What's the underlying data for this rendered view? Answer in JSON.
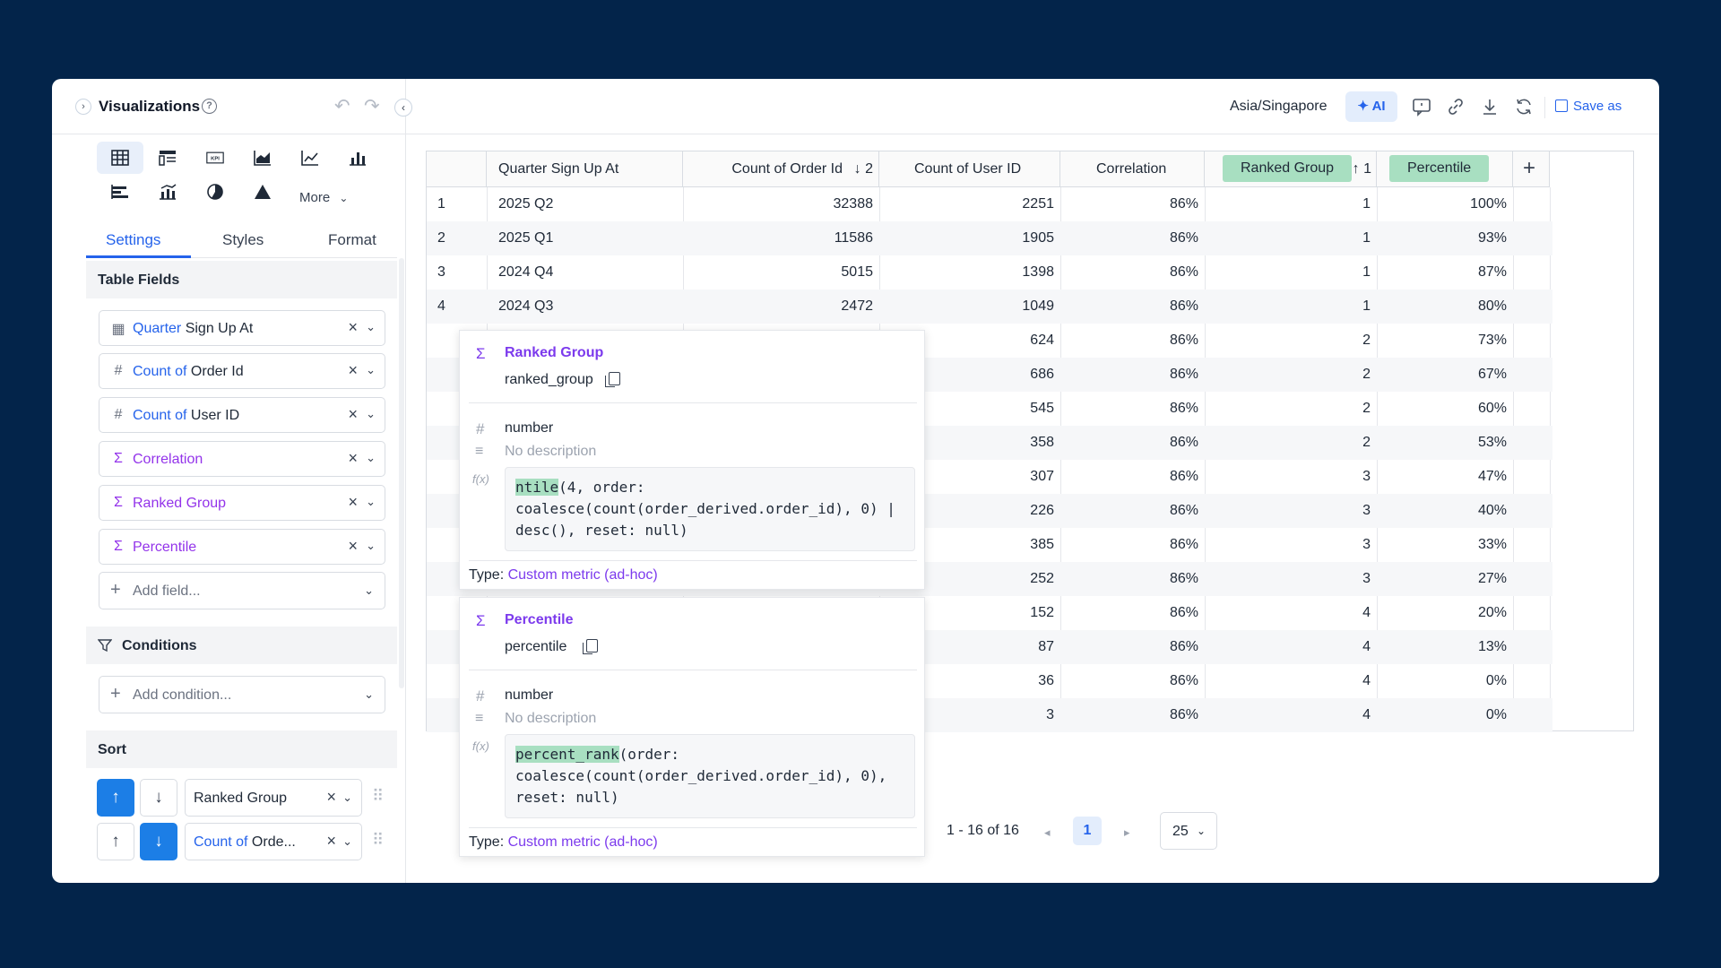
{
  "left_panel": {
    "title": "Visualizations",
    "more_label": "More",
    "tabs": [
      "Settings",
      "Styles",
      "Format"
    ],
    "table_fields_heading": "Table Fields",
    "fields": [
      {
        "prefix": "Quarter",
        "name": " Sign Up At",
        "icon": "calendar-icon"
      },
      {
        "prefix": "Count of",
        "name": " Order Id",
        "icon": "hash-icon"
      },
      {
        "prefix": "Count of",
        "name": " User ID",
        "icon": "hash-icon"
      },
      {
        "prefix": "",
        "name": "Correlation",
        "icon": "sigma-icon"
      },
      {
        "prefix": "",
        "name": "Ranked Group",
        "icon": "sigma-icon"
      },
      {
        "prefix": "",
        "name": "Percentile",
        "icon": "sigma-icon"
      }
    ],
    "add_field_placeholder": "Add field...",
    "conditions_heading": "Conditions",
    "add_condition_placeholder": "Add condition...",
    "sort_heading": "Sort",
    "sorts": [
      {
        "prefix": "",
        "name": "Ranked Group",
        "direction": "asc"
      },
      {
        "prefix": "Count of",
        "name": " Orde...",
        "direction": "desc"
      }
    ]
  },
  "topbar": {
    "timezone": "Asia/Singapore",
    "ai_label": "AI",
    "save_as_label": "Save as"
  },
  "table": {
    "headers": {
      "quarter": "Quarter Sign Up At",
      "order_count": "Count of Order Id",
      "order_sort": "↓ 2",
      "user_count": "Count of User ID",
      "correlation": "Correlation",
      "ranked_group": "Ranked Group",
      "ranked_sort": "↑ 1",
      "percentile": "Percentile"
    },
    "rows": [
      {
        "n": "1",
        "quarter": "2025 Q2",
        "orders": "32388",
        "users": "2251",
        "corr": "86%",
        "group": "1",
        "pct": "100%"
      },
      {
        "n": "2",
        "quarter": "2025 Q1",
        "orders": "11586",
        "users": "1905",
        "corr": "86%",
        "group": "1",
        "pct": "93%"
      },
      {
        "n": "3",
        "quarter": "2024 Q4",
        "orders": "5015",
        "users": "1398",
        "corr": "86%",
        "group": "1",
        "pct": "87%"
      },
      {
        "n": "4",
        "quarter": "2024 Q3",
        "orders": "2472",
        "users": "1049",
        "corr": "86%",
        "group": "1",
        "pct": "80%"
      },
      {
        "n": "",
        "quarter": "",
        "orders": "",
        "users": "624",
        "corr": "86%",
        "group": "2",
        "pct": "73%"
      },
      {
        "n": "",
        "quarter": "",
        "orders": "",
        "users": "686",
        "corr": "86%",
        "group": "2",
        "pct": "67%"
      },
      {
        "n": "",
        "quarter": "",
        "orders": "",
        "users": "545",
        "corr": "86%",
        "group": "2",
        "pct": "60%"
      },
      {
        "n": "",
        "quarter": "",
        "orders": "",
        "users": "358",
        "corr": "86%",
        "group": "2",
        "pct": "53%"
      },
      {
        "n": "",
        "quarter": "",
        "orders": "",
        "users": "307",
        "corr": "86%",
        "group": "3",
        "pct": "47%"
      },
      {
        "n": "",
        "quarter": "",
        "orders": "",
        "users": "226",
        "corr": "86%",
        "group": "3",
        "pct": "40%"
      },
      {
        "n": "",
        "quarter": "",
        "orders": "",
        "users": "385",
        "corr": "86%",
        "group": "3",
        "pct": "33%"
      },
      {
        "n": "",
        "quarter": "",
        "orders": "",
        "users": "252",
        "corr": "86%",
        "group": "3",
        "pct": "27%"
      },
      {
        "n": "",
        "quarter": "",
        "orders": "",
        "users": "152",
        "corr": "86%",
        "group": "4",
        "pct": "20%"
      },
      {
        "n": "",
        "quarter": "",
        "orders": "",
        "users": "87",
        "corr": "86%",
        "group": "4",
        "pct": "13%"
      },
      {
        "n": "",
        "quarter": "",
        "orders": "",
        "users": "36",
        "corr": "86%",
        "group": "4",
        "pct": "0%"
      },
      {
        "n": "",
        "quarter": "",
        "orders": "",
        "users": "3",
        "corr": "86%",
        "group": "4",
        "pct": "0%"
      }
    ]
  },
  "popovers": [
    {
      "name": "Ranked Group",
      "key": "ranked_group",
      "type": "number",
      "description": "No description",
      "fx_label": "f(x)",
      "code_highlight": "ntile",
      "code_rest": "(4, order:\ncoalesce(count(order_derived.order_id), 0) |\ndesc(), reset: null)",
      "type_prefix": "Type: ",
      "type_value": "Custom metric (ad-hoc)"
    },
    {
      "name": "Percentile",
      "key": "percentile",
      "type": "number",
      "description": "No description",
      "fx_label": "f(x)",
      "code_highlight": "percent_rank",
      "code_rest": "(order:\ncoalesce(count(order_derived.order_id), 0),\nreset: null)",
      "type_prefix": "Type: ",
      "type_value": "Custom metric (ad-hoc)"
    }
  ],
  "pagination": {
    "range": "1 - 16 of 16",
    "page": "1",
    "page_size": "25"
  }
}
